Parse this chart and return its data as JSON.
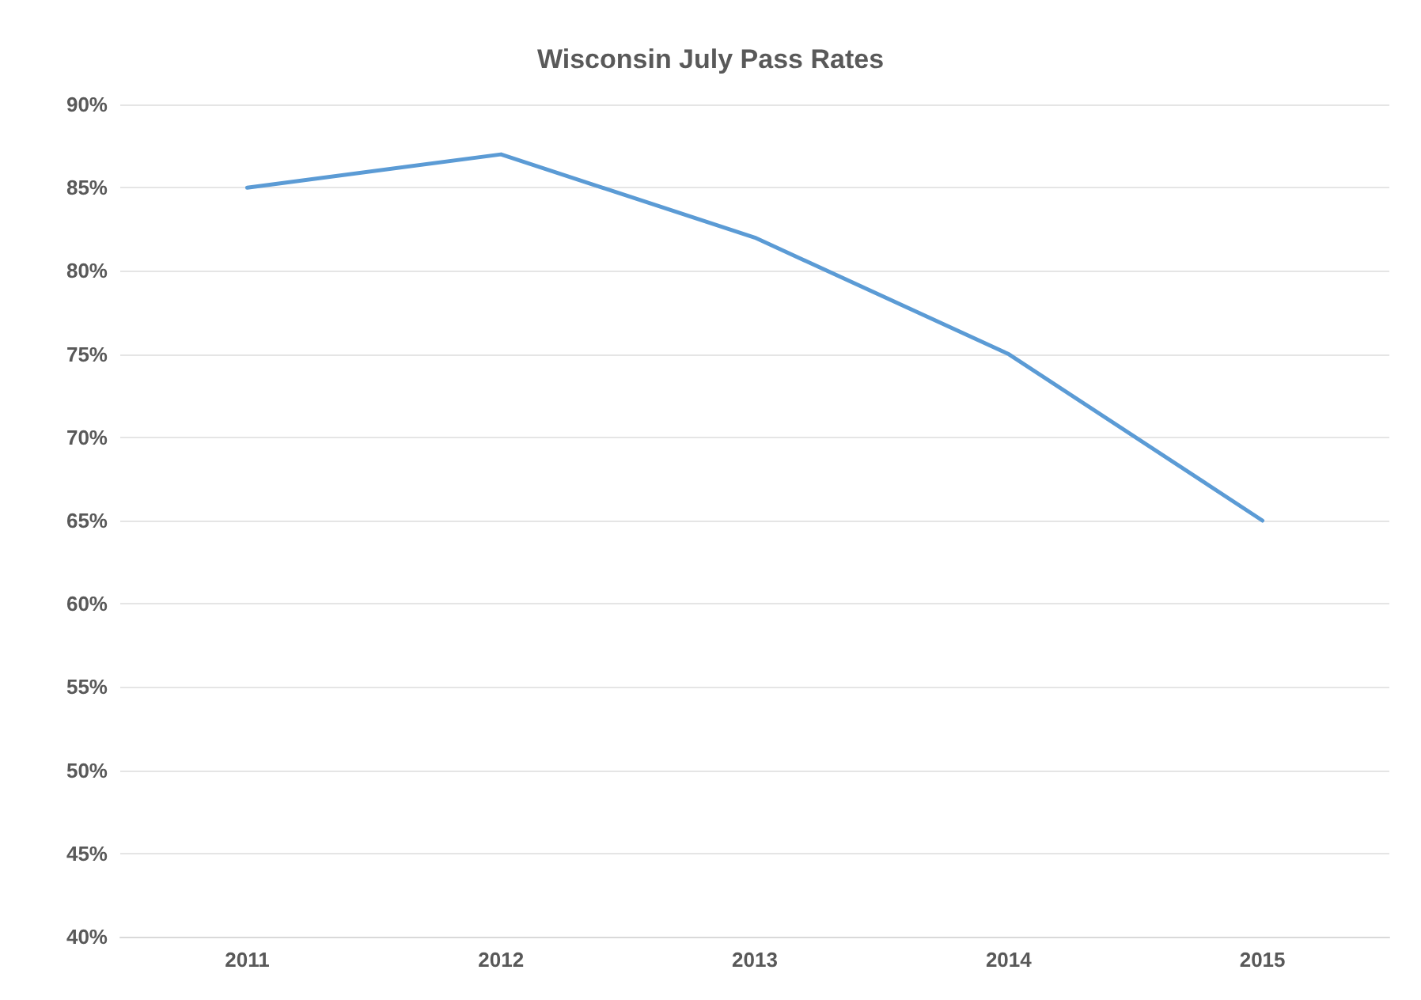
{
  "chart_data": {
    "type": "line",
    "title": "Wisconsin July Pass Rates",
    "categories": [
      "2011",
      "2012",
      "2013",
      "2014",
      "2015"
    ],
    "series": [
      {
        "color": "#5b9bd5",
        "values": [
          85,
          87,
          82,
          75,
          65
        ]
      }
    ],
    "ylim": [
      40,
      90
    ],
    "yticks": [
      {
        "value": 40,
        "label": "40%"
      },
      {
        "value": 45,
        "label": "45%"
      },
      {
        "value": 50,
        "label": "50%"
      },
      {
        "value": 55,
        "label": "55%"
      },
      {
        "value": 60,
        "label": "60%"
      },
      {
        "value": 65,
        "label": "65%"
      },
      {
        "value": 70,
        "label": "70%"
      },
      {
        "value": 75,
        "label": "75%"
      },
      {
        "value": 80,
        "label": "80%"
      },
      {
        "value": 85,
        "label": "85%"
      },
      {
        "value": 90,
        "label": "90%"
      }
    ],
    "grid": "y",
    "marker": "none",
    "line_style": "solid"
  }
}
